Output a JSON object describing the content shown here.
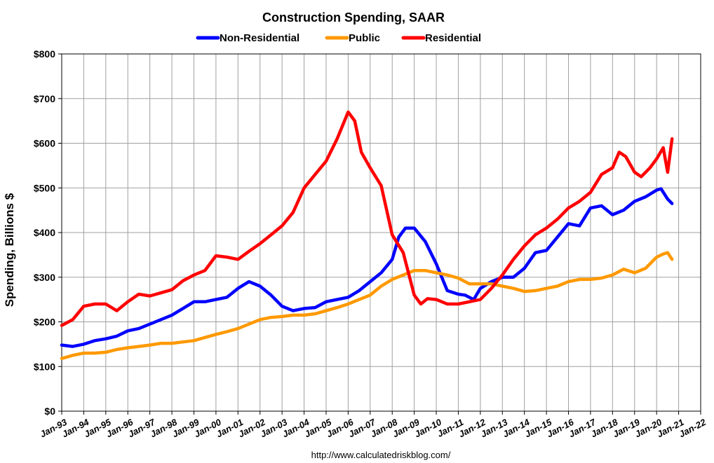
{
  "chart_data": {
    "type": "line",
    "title": "Construction Spending, SAAR",
    "ylabel": "Spending, Billions $",
    "xlabel": "",
    "ylim": [
      0,
      800
    ],
    "xlim": [
      1993.0,
      2022.0
    ],
    "y_ticks": [
      0,
      100,
      200,
      300,
      400,
      500,
      600,
      700,
      800
    ],
    "y_tick_labels": [
      "$0",
      "$100",
      "$200",
      "$300",
      "$400",
      "$500",
      "$600",
      "$700",
      "$800"
    ],
    "x_ticks": [
      1993,
      1994,
      1995,
      1996,
      1997,
      1998,
      1999,
      2000,
      2001,
      2002,
      2003,
      2004,
      2005,
      2006,
      2007,
      2008,
      2009,
      2010,
      2011,
      2012,
      2013,
      2014,
      2015,
      2016,
      2017,
      2018,
      2019,
      2020,
      2021,
      2022
    ],
    "x_tick_labels": [
      "Jan-93",
      "Jan-94",
      "Jan-95",
      "Jan-96",
      "Jan-97",
      "Jan-98",
      "Jan-99",
      "Jan-00",
      "Jan-01",
      "Jan-02",
      "Jan-03",
      "Jan-04",
      "Jan-05",
      "Jan-06",
      "Jan-07",
      "Jan-08",
      "Jan-09",
      "Jan-10",
      "Jan-11",
      "Jan-12",
      "Jan-13",
      "Jan-14",
      "Jan-15",
      "Jan-16",
      "Jan-17",
      "Jan-18",
      "Jan-19",
      "Jan-20",
      "Jan-21",
      "Jan-22"
    ],
    "grid": true,
    "legend_position": "top-center",
    "series": [
      {
        "name": "Non-Residential",
        "color": "#0000ff",
        "x": [
          1993.0,
          1993.5,
          1994.0,
          1994.5,
          1995.0,
          1995.5,
          1996.0,
          1996.5,
          1997.0,
          1997.5,
          1998.0,
          1998.5,
          1999.0,
          1999.5,
          2000.0,
          2000.5,
          2001.0,
          2001.5,
          2002.0,
          2002.5,
          2003.0,
          2003.5,
          2004.0,
          2004.5,
          2005.0,
          2005.5,
          2006.0,
          2006.5,
          2007.0,
          2007.5,
          2008.0,
          2008.3,
          2008.6,
          2009.0,
          2009.5,
          2010.0,
          2010.5,
          2011.0,
          2011.3,
          2011.7,
          2012.0,
          2012.5,
          2013.0,
          2013.5,
          2014.0,
          2014.5,
          2015.0,
          2015.5,
          2016.0,
          2016.5,
          2017.0,
          2017.5,
          2018.0,
          2018.5,
          2019.0,
          2019.5,
          2020.0,
          2020.2,
          2020.5,
          2020.7
        ],
        "values": [
          148,
          145,
          150,
          158,
          162,
          168,
          180,
          185,
          195,
          205,
          215,
          230,
          245,
          245,
          250,
          255,
          275,
          290,
          280,
          260,
          235,
          225,
          230,
          232,
          245,
          250,
          255,
          270,
          290,
          310,
          340,
          390,
          410,
          410,
          380,
          330,
          270,
          262,
          260,
          250,
          275,
          290,
          300,
          300,
          320,
          355,
          360,
          390,
          420,
          415,
          455,
          460,
          440,
          450,
          470,
          480,
          495,
          498,
          475,
          465
        ]
      },
      {
        "name": "Public",
        "color": "#ff9900",
        "x": [
          1993.0,
          1993.5,
          1994.0,
          1994.5,
          1995.0,
          1995.5,
          1996.0,
          1996.5,
          1997.0,
          1997.5,
          1998.0,
          1998.5,
          1999.0,
          1999.5,
          2000.0,
          2000.5,
          2001.0,
          2001.5,
          2002.0,
          2002.5,
          2003.0,
          2003.5,
          2004.0,
          2004.5,
          2005.0,
          2005.5,
          2006.0,
          2006.5,
          2007.0,
          2007.5,
          2008.0,
          2008.5,
          2009.0,
          2009.5,
          2010.0,
          2010.5,
          2011.0,
          2011.5,
          2012.0,
          2012.5,
          2013.0,
          2013.5,
          2014.0,
          2014.5,
          2015.0,
          2015.5,
          2016.0,
          2016.5,
          2017.0,
          2017.5,
          2018.0,
          2018.5,
          2019.0,
          2019.5,
          2020.0,
          2020.3,
          2020.5,
          2020.7
        ],
        "values": [
          118,
          125,
          130,
          130,
          132,
          138,
          142,
          145,
          148,
          152,
          152,
          155,
          158,
          165,
          172,
          178,
          185,
          195,
          205,
          210,
          212,
          215,
          215,
          218,
          225,
          232,
          240,
          250,
          260,
          280,
          295,
          305,
          315,
          315,
          310,
          305,
          298,
          285,
          285,
          285,
          280,
          275,
          268,
          270,
          275,
          280,
          290,
          295,
          295,
          298,
          305,
          318,
          310,
          320,
          345,
          352,
          355,
          340
        ]
      },
      {
        "name": "Residential",
        "color": "#ff0000",
        "x": [
          1993.0,
          1993.5,
          1994.0,
          1994.5,
          1995.0,
          1995.5,
          1996.0,
          1996.5,
          1997.0,
          1997.5,
          1998.0,
          1998.5,
          1999.0,
          1999.5,
          2000.0,
          2000.5,
          2001.0,
          2001.5,
          2002.0,
          2002.5,
          2003.0,
          2003.5,
          2004.0,
          2004.5,
          2005.0,
          2005.5,
          2006.0,
          2006.3,
          2006.6,
          2007.0,
          2007.5,
          2008.0,
          2008.5,
          2009.0,
          2009.3,
          2009.6,
          2010.0,
          2010.5,
          2011.0,
          2011.5,
          2012.0,
          2012.5,
          2013.0,
          2013.5,
          2014.0,
          2014.5,
          2015.0,
          2015.5,
          2016.0,
          2016.5,
          2017.0,
          2017.5,
          2018.0,
          2018.3,
          2018.6,
          2019.0,
          2019.3,
          2019.7,
          2020.0,
          2020.3,
          2020.5,
          2020.7
        ],
        "values": [
          192,
          205,
          235,
          240,
          240,
          225,
          245,
          262,
          258,
          265,
          272,
          292,
          305,
          315,
          348,
          345,
          340,
          358,
          375,
          395,
          415,
          445,
          500,
          530,
          560,
          610,
          670,
          650,
          580,
          545,
          505,
          395,
          355,
          260,
          240,
          252,
          250,
          240,
          240,
          245,
          250,
          275,
          305,
          340,
          370,
          395,
          410,
          430,
          455,
          470,
          490,
          530,
          545,
          580,
          570,
          535,
          525,
          545,
          565,
          590,
          535,
          610
        ]
      }
    ]
  },
  "footer": {
    "url": "http://www.calculatedriskblog.com/"
  }
}
